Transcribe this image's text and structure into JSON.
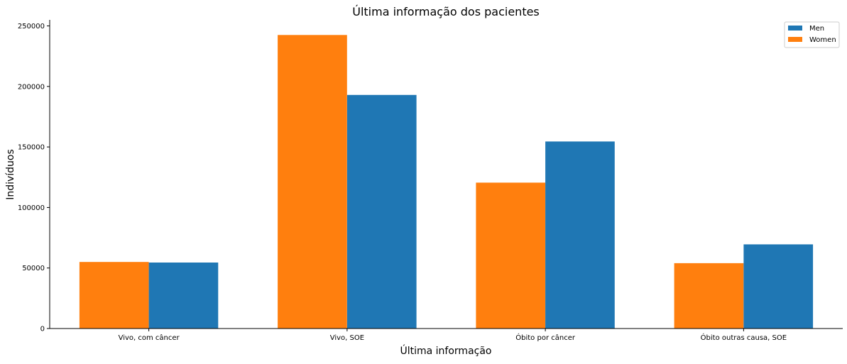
{
  "chart_data": {
    "type": "bar",
    "title": "Última informação dos pacientes",
    "xlabel": "Última informação",
    "ylabel": "Indivíduos",
    "categories": [
      "Vivo, com câncer",
      "Vivo, SOE",
      "Óbito por câncer",
      "Óbito outras causa, SOE"
    ],
    "series": [
      {
        "name": "Women",
        "color": "#ff7f0e",
        "values": [
          55000,
          242500,
          120500,
          54000
        ]
      },
      {
        "name": "Men",
        "color": "#1f77b4",
        "values": [
          54500,
          193000,
          154500,
          69500
        ]
      }
    ],
    "legend_order": [
      "Men",
      "Women"
    ],
    "legend_position": "top-right",
    "ylim": [
      0,
      255000
    ],
    "yticks": [
      0,
      50000,
      100000,
      150000,
      200000,
      250000
    ],
    "ytick_labels": [
      "0",
      "50000",
      "100000",
      "150000",
      "200000",
      "250000"
    ],
    "grid": false,
    "spines": [
      "left",
      "bottom"
    ]
  }
}
